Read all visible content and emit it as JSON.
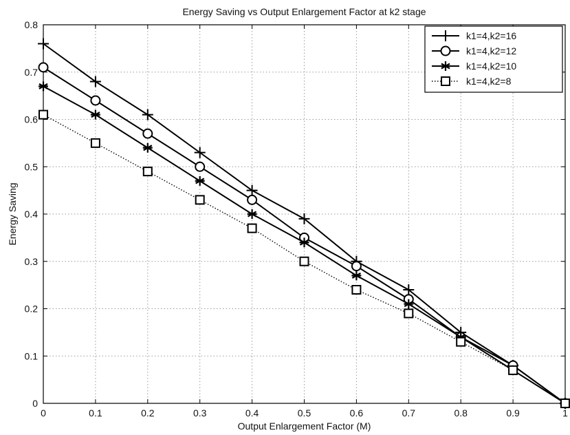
{
  "chart_data": {
    "type": "line",
    "title": "Energy Saving vs Output Enlargement Factor at k2 stage",
    "xlabel": "Output Enlargement Factor (M)",
    "ylabel": "Energy Saving",
    "xlim": [
      0,
      1
    ],
    "ylim": [
      0,
      0.8
    ],
    "xticks": [
      "0",
      "0.1",
      "0.2",
      "0.3",
      "0.4",
      "0.5",
      "0.6",
      "0.7",
      "0.8",
      "0.9",
      "1"
    ],
    "yticks": [
      "0",
      "0.1",
      "0.2",
      "0.3",
      "0.4",
      "0.5",
      "0.6",
      "0.7",
      "0.8"
    ],
    "grid": true,
    "legend_position": "top-right",
    "x": [
      0,
      0.1,
      0.2,
      0.3,
      0.4,
      0.5,
      0.6,
      0.7,
      0.8,
      0.9,
      1.0
    ],
    "series": [
      {
        "name": "k1=4,k2=16",
        "marker": "plus",
        "line": "solid",
        "values": [
          0.76,
          0.68,
          0.61,
          0.53,
          0.45,
          0.39,
          0.3,
          0.24,
          0.15,
          0.08,
          0.0
        ]
      },
      {
        "name": "k1=4,k2=12",
        "marker": "circle",
        "line": "solid",
        "values": [
          0.71,
          0.64,
          0.57,
          0.5,
          0.43,
          0.35,
          0.29,
          0.22,
          0.14,
          0.08,
          0.0
        ]
      },
      {
        "name": "k1=4,k2=10",
        "marker": "asterisk",
        "line": "solid",
        "values": [
          0.67,
          0.61,
          0.54,
          0.47,
          0.4,
          0.34,
          0.27,
          0.21,
          0.14,
          0.07,
          0.0
        ]
      },
      {
        "name": "k1=4,k2=8",
        "marker": "square",
        "line": "dotted",
        "values": [
          0.61,
          0.55,
          0.49,
          0.43,
          0.37,
          0.3,
          0.24,
          0.19,
          0.13,
          0.07,
          0.0
        ]
      }
    ]
  }
}
